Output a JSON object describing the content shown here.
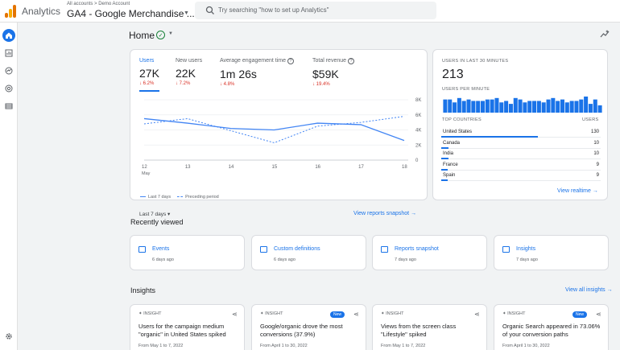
{
  "header": {
    "app_name": "Analytics",
    "breadcrumb": "All accounts > Demo Account",
    "property": "GA4 - Google Merchandise ...",
    "search_placeholder": "Try searching \"how to set up Analytics\""
  },
  "page": {
    "title": "Home"
  },
  "overview": {
    "metrics": [
      {
        "label": "Users",
        "value": "27K",
        "change": "6.2%"
      },
      {
        "label": "New users",
        "value": "22K",
        "change": "7.2%"
      },
      {
        "label": "Average engagement time",
        "value": "1m 26s",
        "change": "4.8%"
      },
      {
        "label": "Total revenue",
        "value": "$59K",
        "change": "19.4%"
      }
    ],
    "date_range": "Last 7 days",
    "link": "View reports snapshot"
  },
  "chart_data": {
    "type": "line",
    "x": [
      "12",
      "13",
      "14",
      "15",
      "16",
      "17",
      "18"
    ],
    "x_sublabel": "May",
    "y_ticks": [
      "8K",
      "6K",
      "4K",
      "2K",
      "0"
    ],
    "ylim": [
      0,
      8000
    ],
    "series": [
      {
        "name": "Last 7 days",
        "values": [
          5500,
          4900,
          4200,
          4000,
          4900,
          4700,
          2600
        ]
      },
      {
        "name": "Preceding period",
        "values": [
          4800,
          5500,
          3900,
          2300,
          4500,
          5000,
          5800
        ]
      }
    ],
    "colors": {
      "current": "#4285f4",
      "previous": "#4285f4"
    }
  },
  "realtime": {
    "title": "USERS IN LAST 30 MINUTES",
    "value": "213",
    "per_minute_label": "USERS PER MINUTE",
    "bars": [
      9,
      9,
      7,
      10,
      8,
      9,
      8,
      8,
      8,
      9,
      9,
      10,
      7,
      8,
      6,
      10,
      9,
      7,
      8,
      8,
      8,
      7,
      9,
      10,
      8,
      9,
      7,
      8,
      8,
      9,
      11,
      6,
      9,
      5
    ],
    "countries_label": "TOP COUNTRIES",
    "users_label": "USERS",
    "countries": [
      {
        "name": "United States",
        "users": "130",
        "share": 1.0
      },
      {
        "name": "Canada",
        "users": "10",
        "share": 0.077
      },
      {
        "name": "India",
        "users": "10",
        "share": 0.077
      },
      {
        "name": "France",
        "users": "9",
        "share": 0.07
      },
      {
        "name": "Spain",
        "users": "9",
        "share": 0.07
      }
    ],
    "link": "View realtime"
  },
  "recently_viewed": {
    "title": "Recently viewed",
    "items": [
      {
        "title": "Events",
        "sub": "6 days ago"
      },
      {
        "title": "Custom definitions",
        "sub": "6 days ago"
      },
      {
        "title": "Reports snapshot",
        "sub": "7 days ago"
      },
      {
        "title": "Insights",
        "sub": "7 days ago"
      }
    ]
  },
  "insights": {
    "title": "Insights",
    "view_all": "View all insights",
    "tag": "INSIGHT",
    "new_label": "New",
    "items": [
      {
        "title": "Users for the campaign medium \"organic\" in United States spiked",
        "sub": "From May 1 to 7, 2022",
        "new": false
      },
      {
        "title": "Google/organic drove the most conversions (37.9%)",
        "sub": "From April 1 to 30, 2022",
        "new": true
      },
      {
        "title": "Views from the screen class \"Lifestyle\" spiked",
        "sub": "From May 1 to 7, 2022",
        "new": false
      },
      {
        "title": "Organic Search appeared in 73.06% of your conversion paths",
        "sub": "From April 1 to 30, 2022",
        "new": true
      }
    ]
  }
}
